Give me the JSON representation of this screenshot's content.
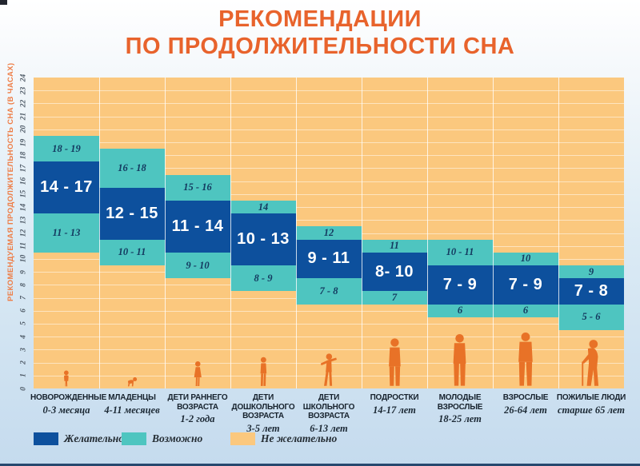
{
  "title": {
    "line1": "РЕКОМЕНДАЦИИ",
    "line2": "ПО ПРОДОЛЖИТЕЛЬНОСТИ СНА"
  },
  "colors": {
    "title_orange": "#e8632c",
    "plot_orange": "#fbc87e",
    "recommended_blue": "#0d509d",
    "possible_teal": "#4ec5c0",
    "silhouette_orange": "#e87227",
    "axis_label_orange": "#ee7d46",
    "dark_text": "#17222d"
  },
  "chart_data": {
    "type": "bar",
    "title": "РЕКОМЕНДАЦИИ ПО ПРОДОЛЖИТЕЛЬНОСТИ СНА",
    "ylabel": "РЕКОМЕНДУЕМАЯ ПРОДОЛЖИТЕЛЬНОСТЬ СНА (В ЧАСАХ)",
    "xlabel": "",
    "ylim": [
      0,
      24
    ],
    "grid": true,
    "legend_position": "bottom",
    "yticks": [
      0,
      1,
      2,
      3,
      4,
      5,
      6,
      7,
      8,
      9,
      10,
      11,
      12,
      13,
      14,
      15,
      16,
      17,
      18,
      19,
      20,
      21,
      22,
      23,
      24
    ],
    "groups": [
      {
        "name_lines": [
          "НОВОРОЖДЕННЫЕ"
        ],
        "age": "0-3 месяца",
        "figure": "baby",
        "possible_more": {
          "label": "18 - 19",
          "from": 18,
          "to": 19
        },
        "recommended": {
          "label": "14 - 17",
          "from": 14,
          "to": 17
        },
        "possible_less": {
          "label": "11 - 13",
          "from": 11,
          "to": 13
        }
      },
      {
        "name_lines": [
          "МЛАДЕНЦЫ"
        ],
        "age": "4-11 месяцев",
        "figure": "crawler",
        "possible_more": {
          "label": "16 - 18",
          "from": 16,
          "to": 18
        },
        "recommended": {
          "label": "12 - 15",
          "from": 12,
          "to": 15
        },
        "possible_less": {
          "label": "10 - 11",
          "from": 10,
          "to": 11
        }
      },
      {
        "name_lines": [
          "ДЕТИ РАННЕГО",
          "ВОЗРАСТА"
        ],
        "age": "1-2 года",
        "figure": "toddler",
        "possible_more": {
          "label": "15 - 16",
          "from": 15,
          "to": 16
        },
        "recommended": {
          "label": "11 - 14",
          "from": 11,
          "to": 14
        },
        "possible_less": {
          "label": "9 - 10",
          "from": 9,
          "to": 10
        }
      },
      {
        "name_lines": [
          "ДЕТИ",
          "ДОШКОЛЬНОГО",
          "ВОЗРАСТА"
        ],
        "age": "3-5 лет",
        "figure": "preschooler",
        "possible_more": {
          "label": "14",
          "from": 14,
          "to": 14
        },
        "recommended": {
          "label": "10 - 13",
          "from": 10,
          "to": 13
        },
        "possible_less": {
          "label": "8 - 9",
          "from": 8,
          "to": 9
        }
      },
      {
        "name_lines": [
          "ДЕТИ",
          "ШКОЛЬНОГО",
          "ВОЗРАСТА"
        ],
        "age": "6-13 лет",
        "figure": "schoolkid",
        "possible_more": {
          "label": "12",
          "from": 12,
          "to": 12
        },
        "recommended": {
          "label": "9 - 11",
          "from": 9,
          "to": 11
        },
        "possible_less": {
          "label": "7 - 8",
          "from": 7,
          "to": 8
        }
      },
      {
        "name_lines": [
          "ПОДРОСТКИ"
        ],
        "age": "14-17 лет",
        "figure": "teen",
        "possible_more": {
          "label": "11",
          "from": 11,
          "to": 11
        },
        "recommended": {
          "label": "8- 10",
          "from": 8,
          "to": 10
        },
        "possible_less": {
          "label": "7",
          "from": 7,
          "to": 7
        }
      },
      {
        "name_lines": [
          "МОЛОДЫЕ",
          "ВЗРОСЛЫЕ"
        ],
        "age": "18-25 лет",
        "figure": "young-adult",
        "possible_more": {
          "label": "10 - 11",
          "from": 10,
          "to": 11
        },
        "recommended": {
          "label": "7 - 9",
          "from": 7,
          "to": 9
        },
        "possible_less": {
          "label": "6",
          "from": 6,
          "to": 6
        }
      },
      {
        "name_lines": [
          "ВЗРОСЛЫЕ"
        ],
        "age": "26-64 лет",
        "figure": "adult",
        "possible_more": {
          "label": "10",
          "from": 10,
          "to": 10
        },
        "recommended": {
          "label": "7 - 9",
          "from": 7,
          "to": 9
        },
        "possible_less": {
          "label": "6",
          "from": 6,
          "to": 6
        }
      },
      {
        "name_lines": [
          "ПОЖИЛЫЕ ЛЮДИ"
        ],
        "age": "старше 65 лет",
        "figure": "senior",
        "possible_more": {
          "label": "9",
          "from": 9,
          "to": 9
        },
        "recommended": {
          "label": "7 - 8",
          "from": 7,
          "to": 8
        },
        "possible_less": {
          "label": "5 - 6",
          "from": 5,
          "to": 6
        }
      }
    ],
    "legend": [
      {
        "label": "Желательно",
        "color": "#0d509d",
        "meaning": "recommended"
      },
      {
        "label": "Возможно",
        "color": "#4ec5c0",
        "meaning": "may be appropriate"
      },
      {
        "label": "Не желательно",
        "color": "#fbc87e",
        "meaning": "not recommended"
      }
    ]
  }
}
